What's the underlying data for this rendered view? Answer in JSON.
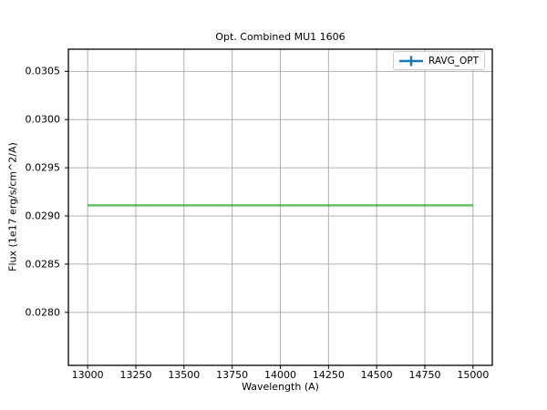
{
  "figure": {
    "title": "Opt. Combined MU1 1606",
    "xlabel": "Wavelength (A)",
    "ylabel": "Flux (1e17 erg/s/cm^2/A)"
  },
  "legend": {
    "label": "RAVG_OPT",
    "handle_color": "#1f77b4",
    "border_color": "#cccccc"
  },
  "chart_data": {
    "type": "line",
    "title": "Opt. Combined MU1 1606",
    "xlabel": "Wavelength (A)",
    "ylabel": "Flux (1e17 erg/s/cm^2/A)",
    "xlim": [
      12900,
      15100
    ],
    "ylim": [
      0.02745,
      0.03073
    ],
    "x_ticks": [
      13000,
      13250,
      13500,
      13750,
      14000,
      14250,
      14500,
      14750,
      15000
    ],
    "y_ticks": [
      0.028,
      0.0285,
      0.029,
      0.0295,
      0.03,
      0.0305
    ],
    "y_tick_labels": [
      "0.0280",
      "0.0285",
      "0.0290",
      "0.0295",
      "0.0300",
      "0.0305"
    ],
    "grid": true,
    "grid_color": "#b0b0b0",
    "spine_color": "#000000",
    "legend_position": "upper right",
    "series": [
      {
        "name": "RAVG_OPT",
        "style": "errorbar-line",
        "x": [
          13000,
          15000
        ],
        "y": [
          0.02911,
          0.02911
        ],
        "color": "#109610",
        "opacity": 0.58,
        "line_width": 2.7,
        "legend_color": "#1f77b4"
      }
    ]
  }
}
